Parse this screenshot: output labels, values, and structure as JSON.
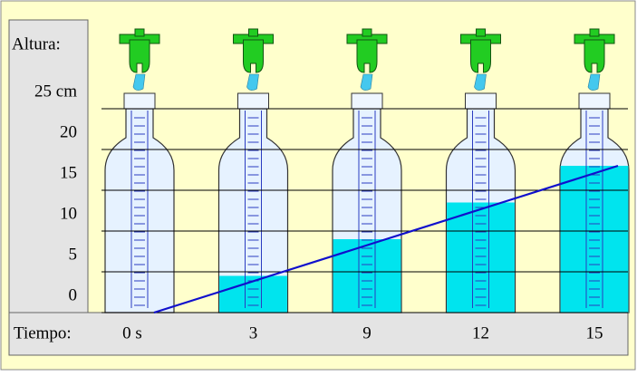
{
  "chart_data": {
    "type": "line",
    "y_label": "Altura:",
    "x_label": "Tiempo:",
    "categories": [
      "0 s",
      "3",
      "9",
      "12",
      "15"
    ],
    "values": [
      0,
      4.5,
      9,
      13.5,
      18
    ],
    "color": "#1010cc",
    "water_color": "#00e4ee",
    "ylim": [
      0,
      25
    ],
    "yticks": [
      0,
      5,
      10,
      15,
      20,
      {
        "value": 25,
        "label": "25 cm"
      }
    ],
    "grid": true
  }
}
